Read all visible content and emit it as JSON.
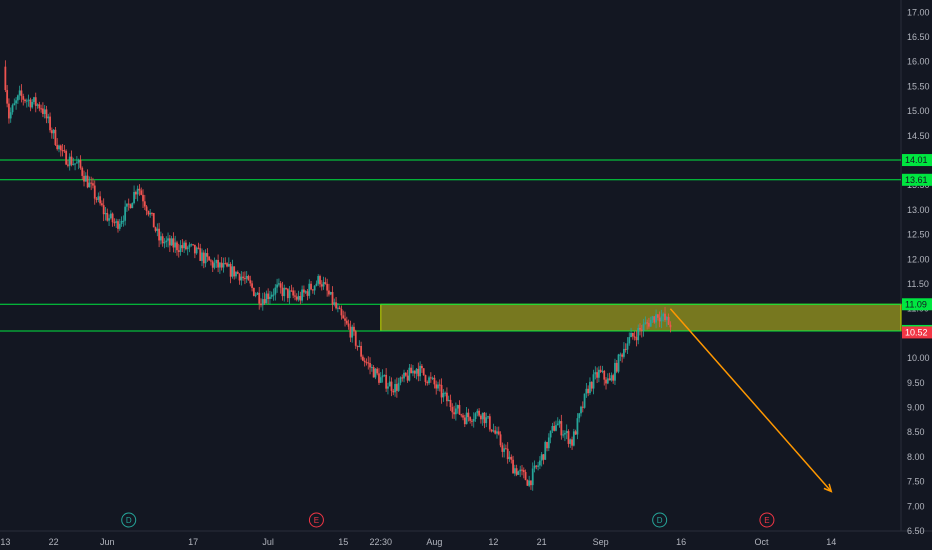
{
  "chart_data": {
    "type": "candlestick",
    "title": "",
    "ylim": [
      6.5,
      17.25
    ],
    "y_ticks": [
      "17.00",
      "16.50",
      "16.00",
      "15.50",
      "15.00",
      "14.50",
      "14.00",
      "13.50",
      "13.00",
      "12.50",
      "12.00",
      "11.50",
      "11.00",
      "10.50",
      "10.00",
      "9.50",
      "9.00",
      "8.50",
      "8.00",
      "7.50",
      "7.00",
      "6.50"
    ],
    "x_ticks": [
      "13",
      "22",
      "Jun",
      "17",
      "Jul",
      "15",
      "22:30",
      "Aug",
      "12",
      "21",
      "Sep",
      "16",
      "Oct",
      "14"
    ],
    "x_tick_dates": [
      "2024-05-13",
      "2024-05-22",
      "2024-06-01",
      "2024-06-17",
      "2024-07-01",
      "2024-07-15",
      "2024-07-22",
      "2024-08-01",
      "2024-08-12",
      "2024-08-21",
      "2024-09-01",
      "2024-09-16",
      "2024-10-01",
      "2024-10-14"
    ],
    "price_path": [
      [
        "2024-05-13",
        15.9
      ],
      [
        "2024-05-14",
        14.9
      ],
      [
        "2024-05-16",
        15.3
      ],
      [
        "2024-05-20",
        15.1
      ],
      [
        "2024-05-22",
        14.6
      ],
      [
        "2024-05-24",
        14.1
      ],
      [
        "2024-05-27",
        13.9
      ],
      [
        "2024-05-29",
        13.5
      ],
      [
        "2024-06-01",
        12.9
      ],
      [
        "2024-06-03",
        12.7
      ],
      [
        "2024-06-05",
        13.0
      ],
      [
        "2024-06-07",
        13.5
      ],
      [
        "2024-06-09",
        13.0
      ],
      [
        "2024-06-11",
        12.4
      ],
      [
        "2024-06-13",
        12.3
      ],
      [
        "2024-06-17",
        12.2
      ],
      [
        "2024-06-21",
        11.9
      ],
      [
        "2024-06-26",
        11.7
      ],
      [
        "2024-06-30",
        11.2
      ],
      [
        "2024-07-03",
        11.4
      ],
      [
        "2024-07-07",
        11.2
      ],
      [
        "2024-07-11",
        11.6
      ],
      [
        "2024-07-13",
        11.2
      ],
      [
        "2024-07-15",
        10.8
      ],
      [
        "2024-07-17",
        10.5
      ],
      [
        "2024-07-19",
        10.0
      ],
      [
        "2024-07-22",
        9.6
      ],
      [
        "2024-07-25",
        9.4
      ],
      [
        "2024-07-29",
        9.8
      ],
      [
        "2024-08-01",
        9.5
      ],
      [
        "2024-08-04",
        9.1
      ],
      [
        "2024-08-07",
        8.8
      ],
      [
        "2024-08-10",
        8.9
      ],
      [
        "2024-08-12",
        8.6
      ],
      [
        "2024-08-16",
        7.8
      ],
      [
        "2024-08-19",
        7.5
      ],
      [
        "2024-08-21",
        7.9
      ],
      [
        "2024-08-24",
        8.7
      ],
      [
        "2024-08-27",
        8.3
      ],
      [
        "2024-08-30",
        9.4
      ],
      [
        "2024-09-01",
        9.7
      ],
      [
        "2024-09-03",
        9.5
      ],
      [
        "2024-09-06",
        10.3
      ],
      [
        "2024-09-09",
        10.6
      ],
      [
        "2024-09-12",
        10.9
      ],
      [
        "2024-09-14",
        10.7
      ]
    ],
    "horizontal_levels": [
      {
        "value": 14.01,
        "label": "14.01",
        "color": "#00e640"
      },
      {
        "value": 13.61,
        "label": "13.61",
        "color": "#00e640"
      },
      {
        "value": 11.09,
        "label": "11.09",
        "color": "#00e640"
      },
      {
        "value": 10.55,
        "label": "10.55",
        "color": "#00e640"
      }
    ],
    "zone": {
      "from_date": "2024-07-22",
      "y_low": 10.55,
      "y_high": 11.09,
      "color": "#8a8a1e"
    },
    "last_price": {
      "value": 10.52,
      "label": "10.52",
      "color": "#f23645"
    },
    "projection_arrow": {
      "from": [
        "2024-09-14",
        11.0
      ],
      "to": [
        "2024-10-14",
        7.3
      ],
      "color": "#ff9800"
    },
    "events": [
      {
        "date": "2024-06-05",
        "letter": "D",
        "color": "#26a69a"
      },
      {
        "date": "2024-07-10",
        "letter": "E",
        "color": "#f23645"
      },
      {
        "date": "2024-09-12",
        "letter": "D",
        "color": "#26a69a"
      },
      {
        "date": "2024-10-02",
        "letter": "E",
        "color": "#f23645"
      }
    ],
    "colors": {
      "background": "#131722",
      "up": "#26a69a",
      "down": "#ef5350",
      "text": "#b2b5be"
    }
  }
}
